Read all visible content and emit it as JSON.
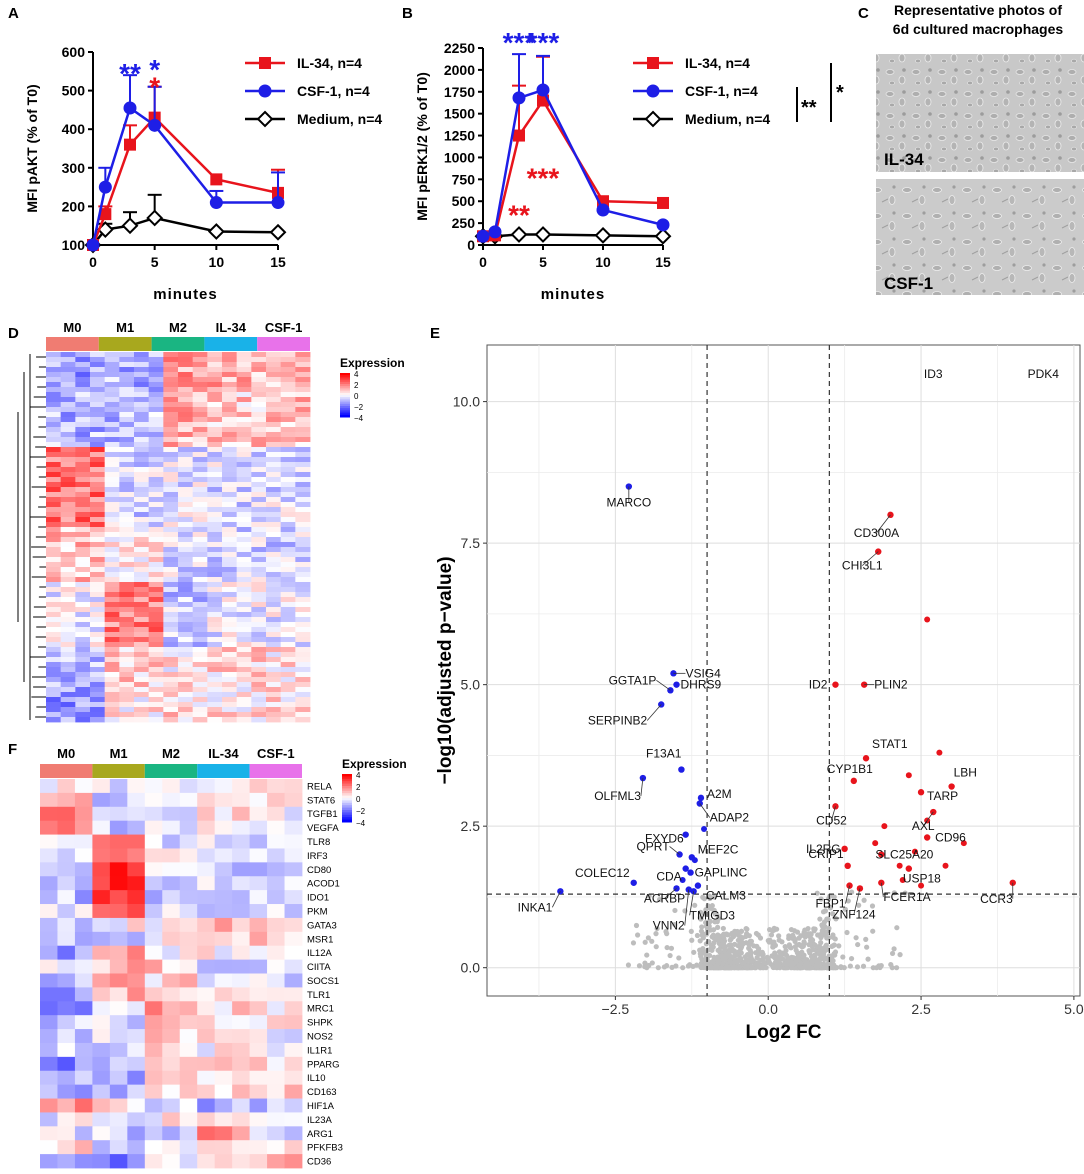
{
  "panel_letters": [
    "A",
    "B",
    "C",
    "D",
    "E",
    "F"
  ],
  "colors": {
    "il34": "#e8141c",
    "csf1": "#1e1ee6",
    "medium": "#000000",
    "up": "#e8141c",
    "down": "#1e1ee6",
    "ns": "#bdbdbd"
  },
  "chart_data": [
    {
      "id": "A",
      "type": "line",
      "title": "",
      "xlabel": "minutes",
      "ylabel": "MFI pAKT (% of T0)",
      "x": [
        0,
        1,
        3,
        5,
        10,
        15
      ],
      "xticks": [
        0,
        5,
        10,
        15
      ],
      "yticks": [
        100,
        200,
        300,
        400,
        500,
        600
      ],
      "xlim": [
        0,
        15
      ],
      "ylim": [
        100,
        600
      ],
      "series": [
        {
          "name": "IL-34, n=4",
          "values": [
            100,
            180,
            360,
            430,
            270,
            235
          ],
          "errors": [
            0,
            20,
            50,
            80,
            0,
            60
          ],
          "marker": "square",
          "color": "#e8141c"
        },
        {
          "name": "CSF-1, n=4",
          "values": [
            100,
            250,
            455,
            410,
            210,
            210
          ],
          "errors": [
            0,
            50,
            85,
            100,
            30,
            78
          ],
          "marker": "circle",
          "color": "#1e1ee6"
        },
        {
          "name": "Medium, n=4",
          "values": [
            100,
            140,
            150,
            170,
            135,
            133
          ],
          "errors": [
            0,
            15,
            35,
            60,
            0,
            0
          ],
          "marker": "diamond",
          "color": "#000000"
        }
      ],
      "annotations": [
        {
          "text": "**",
          "x": 3,
          "y": 530,
          "color": "#1e1ee6"
        },
        {
          "text": "*",
          "x": 5,
          "y": 540,
          "color": "#1e1ee6"
        },
        {
          "text": "*",
          "x": 5,
          "y": 495,
          "color": "#e8141c"
        }
      ]
    },
    {
      "id": "B",
      "type": "line",
      "title": "",
      "xlabel": "minutes",
      "ylabel": "MFI pERK1/2 (% of T0)",
      "x": [
        0,
        1,
        3,
        5,
        10,
        15
      ],
      "xticks": [
        0,
        5,
        10,
        15
      ],
      "yticks": [
        0,
        250,
        500,
        750,
        1000,
        1250,
        1500,
        1750,
        2000,
        2250
      ],
      "xlim": [
        0,
        15
      ],
      "ylim": [
        0,
        2250
      ],
      "series": [
        {
          "name": "IL-34, n=4",
          "values": [
            100,
            110,
            1250,
            1650,
            500,
            480
          ],
          "errors": [
            0,
            0,
            570,
            500,
            0,
            0
          ],
          "marker": "square",
          "color": "#e8141c"
        },
        {
          "name": "CSF-1, n=4",
          "values": [
            100,
            150,
            1680,
            1770,
            400,
            230
          ],
          "errors": [
            0,
            0,
            500,
            390,
            0,
            0
          ],
          "marker": "circle",
          "color": "#1e1ee6"
        },
        {
          "name": "Medium, n=4",
          "values": [
            100,
            100,
            120,
            120,
            110,
            100
          ],
          "errors": [
            0,
            0,
            0,
            0,
            0,
            0
          ],
          "marker": "diamond",
          "color": "#000000"
        }
      ],
      "annotations": [
        {
          "text": "***",
          "x": 3,
          "y": 2250,
          "color": "#1e1ee6"
        },
        {
          "text": "***",
          "x": 5,
          "y": 2250,
          "color": "#1e1ee6"
        },
        {
          "text": "**",
          "x": 3,
          "y": 280,
          "color": "#e8141c"
        },
        {
          "text": "***",
          "x": 5,
          "y": 700,
          "color": "#e8141c"
        }
      ],
      "significance": [
        "**",
        "*"
      ]
    },
    {
      "id": "D",
      "type": "heatmap",
      "groups": [
        "M0",
        "M1",
        "M2",
        "IL-34",
        "CSF-1"
      ],
      "group_colors": [
        "#f07c72",
        "#a8a81e",
        "#1ab582",
        "#19b2e8",
        "#e872ea"
      ],
      "legend_title": "Expression",
      "legend_ticks": [
        "4",
        "2",
        "0",
        "−2",
        "−4"
      ]
    },
    {
      "id": "E",
      "type": "scatter",
      "xlabel": "Log2 FC",
      "ylabel": "−log10(adjusted p−value)",
      "xlim": [
        -4.6,
        5.1
      ],
      "ylim": [
        -0.5,
        11
      ],
      "xticks": [
        "−2.5",
        "0.0",
        "2.5",
        "5.0"
      ],
      "xtick_values": [
        -2.5,
        0,
        2.5,
        5
      ],
      "yticks": [
        "0.0",
        "2.5",
        "5.0",
        "7.5",
        "10.0"
      ],
      "ytick_values": [
        0,
        2.5,
        5,
        7.5,
        10
      ],
      "thresholds": {
        "vlines": [
          -1,
          1
        ],
        "hline": 1.3
      },
      "labeled_points": [
        {
          "label": "ID3",
          "x": 2.7,
          "y": 10.35,
          "dir": "up"
        },
        {
          "label": "PDK4",
          "x": 4.5,
          "y": 10.35,
          "dir": "up"
        },
        {
          "label": "MARCO",
          "x": -2.28,
          "y": 8.5,
          "dir": "down"
        },
        {
          "label": "CD300A",
          "x": 2.0,
          "y": 8.0,
          "dir": "up"
        },
        {
          "label": "CHI3L1",
          "x": 1.8,
          "y": 7.35,
          "dir": "up"
        },
        {
          "label": "GGTA1P",
          "x": -1.6,
          "y": 4.9,
          "dir": "down"
        },
        {
          "label": "VSIG4",
          "x": -1.55,
          "y": 5.2,
          "dir": "down"
        },
        {
          "label": "DHRS9",
          "x": -1.5,
          "y": 5.0,
          "dir": "down"
        },
        {
          "label": "SERPINB2",
          "x": -1.75,
          "y": 4.65,
          "dir": "down"
        },
        {
          "label": "ID2",
          "x": 1.1,
          "y": 5.0,
          "dir": "up"
        },
        {
          "label": "PLIN2",
          "x": 1.57,
          "y": 5.0,
          "dir": "up"
        },
        {
          "label": "STAT1",
          "x": 1.6,
          "y": 3.7,
          "dir": "up"
        },
        {
          "label": "F13A1",
          "x": -1.42,
          "y": 3.5,
          "dir": "down"
        },
        {
          "label": "OLFML3",
          "x": -2.05,
          "y": 3.35,
          "dir": "down"
        },
        {
          "label": "LBH",
          "x": 3.0,
          "y": 3.2,
          "dir": "up"
        },
        {
          "label": "TARP",
          "x": 2.5,
          "y": 3.1,
          "dir": "up"
        },
        {
          "label": "CYP1B1",
          "x": 1.4,
          "y": 3.3,
          "dir": "up"
        },
        {
          "label": "A2M",
          "x": -1.1,
          "y": 3.0,
          "dir": "down"
        },
        {
          "label": "ADAP2",
          "x": -1.12,
          "y": 2.9,
          "dir": "down"
        },
        {
          "label": "AXL",
          "x": 2.7,
          "y": 2.75,
          "dir": "up"
        },
        {
          "label": "CD52",
          "x": 1.1,
          "y": 2.85,
          "dir": "up"
        },
        {
          "label": "FXYD6",
          "x": -1.35,
          "y": 2.35,
          "dir": "down"
        },
        {
          "label": "CD96",
          "x": 2.6,
          "y": 2.3,
          "dir": "up"
        },
        {
          "label": "IL2RG",
          "x": 1.25,
          "y": 2.1,
          "dir": "up"
        },
        {
          "label": "QPRT",
          "x": -1.45,
          "y": 2.0,
          "dir": "down"
        },
        {
          "label": "MEF2C",
          "x": -1.25,
          "y": 1.95,
          "dir": "down"
        },
        {
          "label": "SLC25A20",
          "x": 1.85,
          "y": 2.0,
          "dir": "up"
        },
        {
          "label": "CRIP1",
          "x": 1.3,
          "y": 1.8,
          "dir": "up"
        },
        {
          "label": "USP18",
          "x": 2.3,
          "y": 1.75,
          "dir": "up"
        },
        {
          "label": "CDA",
          "x": -1.35,
          "y": 1.75,
          "dir": "down"
        },
        {
          "label": "GAPLINC",
          "x": -1.27,
          "y": 1.68,
          "dir": "down"
        },
        {
          "label": "COLEC12",
          "x": -2.2,
          "y": 1.5,
          "dir": "down"
        },
        {
          "label": "FBP1",
          "x": 1.33,
          "y": 1.45,
          "dir": "up"
        },
        {
          "label": "CALM3",
          "x": -1.15,
          "y": 1.45,
          "dir": "down"
        },
        {
          "label": "FCER1A",
          "x": 1.85,
          "y": 1.5,
          "dir": "up"
        },
        {
          "label": "CCR3",
          "x": 4.0,
          "y": 1.5,
          "dir": "up"
        },
        {
          "label": "ACRBP",
          "x": -1.5,
          "y": 1.4,
          "dir": "down"
        },
        {
          "label": "ZNF124",
          "x": 1.5,
          "y": 1.4,
          "dir": "up"
        },
        {
          "label": "TMIGD3",
          "x": -1.22,
          "y": 1.35,
          "dir": "down"
        },
        {
          "label": "INKA1",
          "x": -3.4,
          "y": 1.35,
          "dir": "down"
        },
        {
          "label": "VNN2",
          "x": -1.3,
          "y": 1.38,
          "dir": "down"
        }
      ]
    },
    {
      "id": "F",
      "type": "heatmap",
      "groups": [
        "M0",
        "M1",
        "M2",
        "IL-34",
        "CSF-1"
      ],
      "group_colors": [
        "#f07c72",
        "#a8a81e",
        "#1ab582",
        "#19b2e8",
        "#e872ea"
      ],
      "legend_title": "Expression",
      "legend_ticks": [
        "4",
        "2",
        "0",
        "−2",
        "−4"
      ],
      "genes": [
        "RELA",
        "STAT6",
        "TGFB1",
        "VEGFA",
        "TLR8",
        "IRF3",
        "CD80",
        "ACOD1",
        "IDO1",
        "PKM",
        "GATA3",
        "MSR1",
        "IL12A",
        "CIITA",
        "SOCS1",
        "TLR1",
        "MRC1",
        "SHPK",
        "NOS2",
        "IL1R1",
        "PPARG",
        "IL10",
        "CD163",
        "HIF1A",
        "IL23A",
        "ARG1",
        "PFKFB3",
        "CD36"
      ]
    }
  ],
  "panel_c": {
    "title_line1": "Representative photos of",
    "title_line2": "6d cultured macrophages",
    "photo_labels": [
      "IL-34",
      "CSF-1"
    ]
  }
}
